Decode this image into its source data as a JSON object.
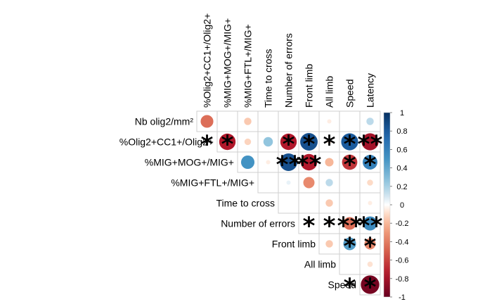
{
  "chart_data": {
    "type": "heatmap",
    "title": "",
    "row_labels": [
      "Nb olig2/mm²",
      "%Olig2+CC1+/Olig2+",
      "%MIG+MOG+/MIG+",
      "%MIG+FTL+/MIG+",
      "Time to cross",
      "Number of errors",
      "Front limb",
      "All limb",
      "Speed"
    ],
    "col_labels": [
      "%Olig2+CC1+/Olig2+",
      "%MIG+MOG+/MIG+",
      "%MIG+FTL+/MIG+",
      "Time to cross",
      "Number of errors",
      "Front limb",
      "All limb",
      "Speed",
      "Latency"
    ],
    "values": [
      [
        -0.45,
        null,
        -0.15,
        null,
        0.0,
        null,
        -0.05,
        null,
        0.15
      ],
      [
        null,
        -0.75,
        -0.12,
        0.25,
        -0.75,
        0.85,
        -0.06,
        0.8,
        -0.8
      ],
      [
        null,
        null,
        0.5,
        -0.05,
        0.85,
        -0.75,
        -0.2,
        -0.65,
        0.6
      ],
      [
        null,
        null,
        null,
        null,
        0.05,
        -0.35,
        0.15,
        null,
        -0.1
      ],
      [
        null,
        null,
        null,
        null,
        0.0,
        null,
        -0.15,
        null,
        -0.05
      ],
      [
        null,
        null,
        null,
        null,
        null,
        -0.05,
        -0.05,
        -0.45,
        0.55
      ],
      [
        null,
        null,
        null,
        null,
        null,
        null,
        -0.15,
        0.45,
        -0.35
      ],
      [
        null,
        null,
        null,
        null,
        null,
        null,
        null,
        null,
        -0.08
      ],
      [
        null,
        null,
        null,
        null,
        null,
        null,
        null,
        null,
        -0.95
      ]
    ],
    "stars": [
      [
        0,
        0,
        0,
        0,
        0,
        0,
        0,
        0,
        0
      ],
      [
        1,
        1,
        0,
        0,
        1,
        1,
        1,
        1,
        2
      ],
      [
        0,
        0,
        0,
        0,
        2,
        2,
        0,
        1,
        1
      ],
      [
        0,
        0,
        0,
        0,
        0,
        0,
        0,
        0,
        0
      ],
      [
        0,
        0,
        0,
        0,
        0,
        0,
        0,
        0,
        0
      ],
      [
        0,
        0,
        0,
        0,
        0,
        1,
        1,
        2,
        2
      ],
      [
        0,
        0,
        0,
        0,
        0,
        0,
        0,
        1,
        1
      ],
      [
        0,
        0,
        0,
        0,
        0,
        0,
        0,
        0,
        0
      ],
      [
        0,
        0,
        0,
        0,
        0,
        0,
        0,
        1,
        1
      ]
    ],
    "colorbar": {
      "range": [
        -1,
        1
      ],
      "ticks": [
        "1",
        "0.8",
        "0.6",
        "0.4",
        "0.2",
        "0",
        "-0.2",
        "-0.4",
        "-0.6",
        "-0.8",
        "-1"
      ],
      "low_color": "#67001f",
      "mid_color": "#ffffff",
      "high_color": "#053061"
    },
    "star_symbol": "*"
  }
}
